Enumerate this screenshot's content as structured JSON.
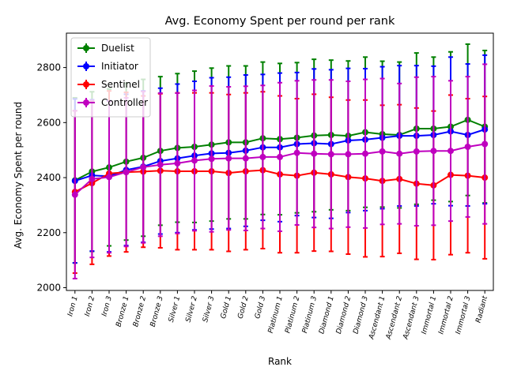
{
  "chart_data": {
    "type": "line",
    "title": "Avg. Economy Spent per round per rank",
    "xlabel": "Rank",
    "ylabel": "Avg. Economy Spent per round",
    "ylim": [
      1990,
      2925
    ],
    "yticks": [
      2000,
      2200,
      2400,
      2600,
      2800
    ],
    "grid": false,
    "legend_position": "upper-left",
    "error_bars": true,
    "categories": [
      "Iron 1",
      "Iron 2",
      "Iron 3",
      "Bronze 1",
      "Bronze 2",
      "Bronze 3",
      "Silver 1",
      "Silver 2",
      "Silver 3",
      "Gold 1",
      "Gold 2",
      "Gold 3",
      "Platinum 1",
      "Platinum 2",
      "Platinum 3",
      "Diamond 1",
      "Diamond 2",
      "Diamond 3",
      "Ascendant 1",
      "Ascendant 2",
      "Ascendant 3",
      "Immortal 1",
      "Immortal 2",
      "Immortal 3",
      "Radiant"
    ],
    "series": [
      {
        "name": "Duelist",
        "color": "#008000",
        "values": [
          2390,
          2422,
          2437,
          2458,
          2472,
          2497,
          2508,
          2512,
          2520,
          2528,
          2528,
          2543,
          2540,
          2545,
          2553,
          2555,
          2552,
          2565,
          2558,
          2555,
          2578,
          2578,
          2585,
          2610,
          2585
        ],
        "err": [
          300,
          290,
          285,
          285,
          285,
          270,
          270,
          275,
          278,
          278,
          278,
          277,
          275,
          273,
          277,
          272,
          272,
          273,
          265,
          265,
          275,
          260,
          272,
          275,
          277
        ]
      },
      {
        "name": "Initiator",
        "color": "#0000ff",
        "values": [
          2388,
          2408,
          2405,
          2428,
          2440,
          2460,
          2470,
          2480,
          2488,
          2490,
          2498,
          2510,
          2510,
          2522,
          2525,
          2522,
          2535,
          2538,
          2545,
          2552,
          2552,
          2555,
          2568,
          2555,
          2575
        ],
        "err": [
          298,
          275,
          275,
          275,
          275,
          265,
          270,
          270,
          275,
          275,
          275,
          265,
          270,
          260,
          270,
          270,
          262,
          258,
          258,
          255,
          255,
          250,
          270,
          258,
          270
        ]
      },
      {
        "name": "Sentinel",
        "color": "#ff0000",
        "values": [
          2348,
          2380,
          2415,
          2420,
          2422,
          2425,
          2423,
          2423,
          2423,
          2417,
          2423,
          2427,
          2412,
          2407,
          2418,
          2412,
          2402,
          2397,
          2388,
          2395,
          2378,
          2372,
          2410,
          2407,
          2400
        ],
        "err": [
          295,
          295,
          300,
          290,
          275,
          280,
          285,
          285,
          285,
          285,
          285,
          285,
          285,
          280,
          285,
          280,
          280,
          285,
          275,
          270,
          275,
          270,
          290,
          280,
          295
        ]
      },
      {
        "name": "Controller",
        "color": "#bf00bf",
        "values": [
          2338,
          2395,
          2402,
          2420,
          2438,
          2447,
          2452,
          2462,
          2468,
          2470,
          2470,
          2475,
          2475,
          2490,
          2487,
          2485,
          2485,
          2487,
          2495,
          2487,
          2495,
          2497,
          2497,
          2512,
          2522
        ],
        "err": [
          305,
          285,
          275,
          270,
          275,
          260,
          255,
          255,
          265,
          260,
          262,
          260,
          270,
          262,
          268,
          270,
          265,
          270,
          265,
          255,
          270,
          270,
          255,
          255,
          290
        ]
      }
    ]
  }
}
